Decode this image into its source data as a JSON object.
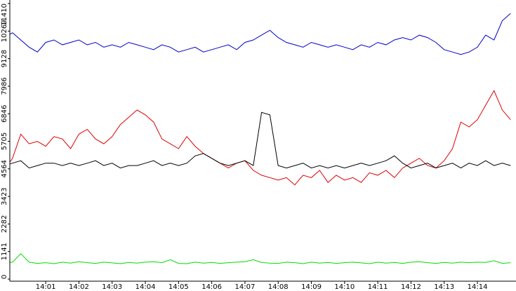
{
  "chart_data": {
    "type": "line",
    "categories": [
      null,
      null,
      null,
      null,
      null,
      "14:01",
      null,
      null,
      null,
      "14:02",
      null,
      null,
      null,
      "14:03",
      null,
      null,
      null,
      "14:04",
      null,
      null,
      null,
      "14:05",
      null,
      null,
      null,
      "14:06",
      null,
      null,
      null,
      "14:07",
      null,
      null,
      null,
      "14:08",
      null,
      null,
      null,
      "14:09",
      null,
      null,
      null,
      "14:10",
      null,
      null,
      null,
      "14:11",
      null,
      null,
      null,
      "14:12",
      null,
      null,
      null,
      "14:13",
      null,
      null,
      null,
      "14:14",
      null,
      null,
      null,
      null
    ],
    "ylim": [
      0,
      11410
    ],
    "yticks": [
      0,
      1141,
      2282,
      3423,
      4564,
      5705,
      6846,
      7986,
      9128,
      10269,
      11410
    ],
    "series": [
      {
        "color": "#0000cc",
        "values": [
          10000,
          10200,
          9900,
          9600,
          9400,
          9800,
          9900,
          9700,
          9800,
          9900,
          9700,
          9800,
          9600,
          9700,
          9600,
          9800,
          9700,
          9600,
          9500,
          9700,
          9600,
          9400,
          9500,
          9600,
          9400,
          9500,
          9600,
          9700,
          9500,
          9800,
          9900,
          10100,
          10300,
          10000,
          9800,
          9700,
          9600,
          9800,
          9700,
          9600,
          9700,
          9600,
          9500,
          9700,
          9600,
          9800,
          9700,
          9900,
          10000,
          9900,
          10100,
          10000,
          9800,
          9500,
          9400,
          9300,
          9400,
          9600,
          10100,
          9900,
          10700,
          11000
        ]
      },
      {
        "color": "#dd0000",
        "values": [
          4500,
          5000,
          6000,
          5600,
          5700,
          5500,
          5900,
          5800,
          5400,
          6000,
          6200,
          5800,
          5600,
          5900,
          6400,
          6700,
          7000,
          6800,
          6500,
          5800,
          5600,
          5400,
          5900,
          5500,
          5200,
          5000,
          4800,
          4600,
          4800,
          4900,
          4500,
          4300,
          4200,
          4100,
          4200,
          3900,
          4300,
          4200,
          4500,
          4000,
          4300,
          4100,
          4200,
          4000,
          4400,
          4300,
          4500,
          4200,
          4600,
          4800,
          5000,
          4700,
          4600,
          4900,
          5400,
          6500,
          6300,
          6600,
          7200,
          7800,
          7000,
          6600
        ]
      },
      {
        "color": "#000000",
        "values": [
          4700,
          4800,
          4900,
          4600,
          4700,
          4800,
          4800,
          4700,
          4800,
          4700,
          4800,
          4900,
          4700,
          4800,
          4600,
          4700,
          4700,
          4800,
          4900,
          4700,
          4800,
          4700,
          4800,
          5100,
          5200,
          5000,
          4800,
          4700,
          4800,
          4900,
          4700,
          6900,
          6800,
          4700,
          4600,
          4700,
          4800,
          4600,
          4700,
          4600,
          4700,
          4600,
          4700,
          4800,
          4700,
          4800,
          4900,
          5100,
          4800,
          4600,
          4700,
          4800,
          4600,
          4700,
          4800,
          4600,
          4800,
          4700,
          4900,
          4700,
          4800,
          4700
        ]
      },
      {
        "color": "#00dd00",
        "values": [
          650,
          700,
          1050,
          700,
          650,
          680,
          640,
          700,
          660,
          720,
          680,
          650,
          700,
          670,
          640,
          690,
          660,
          700,
          720,
          680,
          800,
          650,
          640,
          700,
          660,
          690,
          650,
          680,
          700,
          720,
          800,
          690,
          660,
          650,
          700,
          680,
          640,
          700,
          660,
          690,
          650,
          680,
          700,
          670,
          640,
          700,
          660,
          690,
          650,
          700,
          720,
          680,
          650,
          690,
          660,
          700,
          680,
          700,
          690,
          760,
          650,
          680
        ]
      }
    ]
  }
}
